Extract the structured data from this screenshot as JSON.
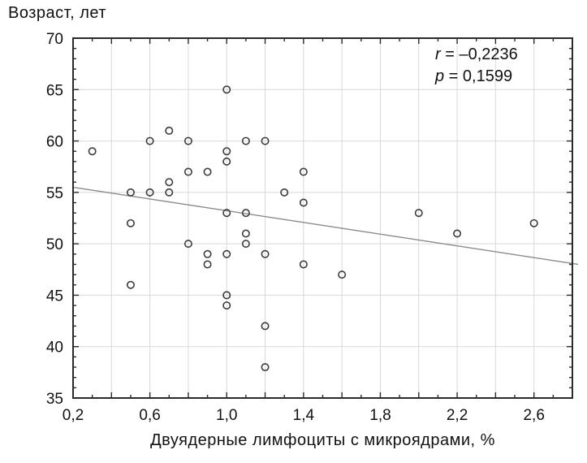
{
  "chart_data": {
    "type": "scatter",
    "title": "",
    "y_axis_title": "Возраст, лет",
    "x_axis_title": "Двуядерные лимфоциты с микроядрами, %",
    "xlim": [
      0.2,
      2.8
    ],
    "ylim": [
      35,
      70
    ],
    "x_ticks": [
      {
        "value": 0.2,
        "label": "0,2"
      },
      {
        "value": 0.6,
        "label": "0,6"
      },
      {
        "value": 1.0,
        "label": "1,0"
      },
      {
        "value": 1.4,
        "label": "1,4"
      },
      {
        "value": 1.8,
        "label": "1,8"
      },
      {
        "value": 2.2,
        "label": "2,2"
      },
      {
        "value": 2.6,
        "label": "2,6"
      }
    ],
    "y_ticks": [
      {
        "value": 35,
        "label": "35"
      },
      {
        "value": 40,
        "label": "40"
      },
      {
        "value": 45,
        "label": "45"
      },
      {
        "value": 50,
        "label": "50"
      },
      {
        "value": 55,
        "label": "55"
      },
      {
        "value": 60,
        "label": "60"
      },
      {
        "value": 65,
        "label": "65"
      },
      {
        "value": 70,
        "label": "70"
      }
    ],
    "x_grid_step": 0.2,
    "y_grid_step": 5,
    "x_minor_tick_step": 0.1,
    "y_minor_tick_step": 1,
    "grid_on": true,
    "points": [
      [
        0.3,
        59
      ],
      [
        0.5,
        55
      ],
      [
        0.5,
        52
      ],
      [
        0.5,
        46
      ],
      [
        0.6,
        60
      ],
      [
        0.6,
        55
      ],
      [
        0.7,
        61
      ],
      [
        0.7,
        56
      ],
      [
        0.7,
        55
      ],
      [
        0.8,
        60
      ],
      [
        0.8,
        57
      ],
      [
        0.8,
        50
      ],
      [
        0.9,
        57
      ],
      [
        0.9,
        49
      ],
      [
        0.9,
        48
      ],
      [
        1.0,
        65
      ],
      [
        1.0,
        59
      ],
      [
        1.0,
        58
      ],
      [
        1.0,
        53
      ],
      [
        1.0,
        49
      ],
      [
        1.0,
        45
      ],
      [
        1.0,
        44
      ],
      [
        1.1,
        60
      ],
      [
        1.1,
        53
      ],
      [
        1.1,
        51
      ],
      [
        1.1,
        50
      ],
      [
        1.2,
        60
      ],
      [
        1.2,
        49
      ],
      [
        1.2,
        42
      ],
      [
        1.2,
        38
      ],
      [
        1.3,
        55
      ],
      [
        1.4,
        57
      ],
      [
        1.4,
        54
      ],
      [
        1.4,
        48
      ],
      [
        1.6,
        47
      ],
      [
        2.0,
        53
      ],
      [
        2.2,
        51
      ],
      [
        2.6,
        52
      ]
    ],
    "regression_line": {
      "x1": 0.2,
      "y1": 55.5,
      "x2": 2.83,
      "y2": 48.0
    },
    "annotation": {
      "lines": [
        {
          "symbol": "r",
          "text": " = –0,2236"
        },
        {
          "symbol": "p",
          "text": " = 0,1599"
        }
      ]
    }
  },
  "colors": {
    "frame": "#2a2a2a",
    "grid": "#d9d9d9",
    "regression_line": "#8a8a8a",
    "point_stroke": "#3c3c3c",
    "text": "#111111"
  }
}
